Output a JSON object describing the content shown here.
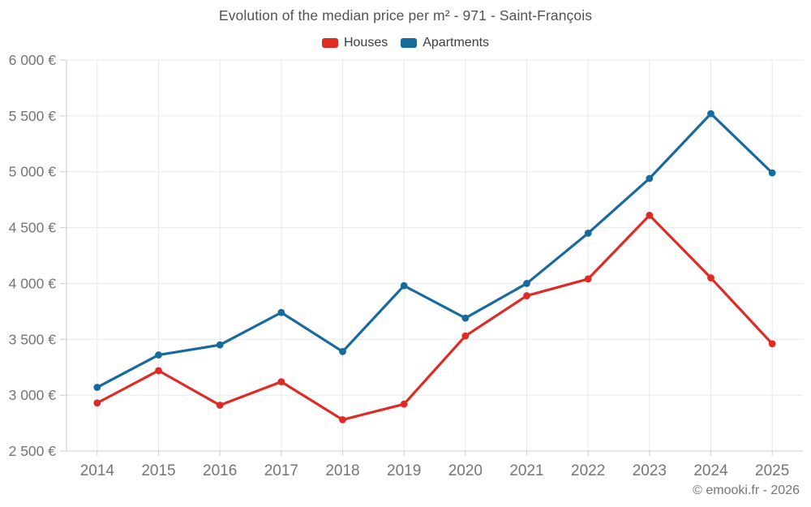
{
  "title": "Evolution of the median price per m² - 971 - Saint-François",
  "footer": "© emooki.fr - 2026",
  "style": {
    "background": "#ffffff",
    "grid_color": "#e8e8e8",
    "axis_color": "#cccccc",
    "tick_text_color": "#757575",
    "title_text_color": "#525252",
    "legend_text_color": "#3d3d3d",
    "footer_text_color": "#757575"
  },
  "chart_data": {
    "type": "line",
    "title": "Evolution of the median price per m² - 971 - Saint-François",
    "x": [
      "2014",
      "2015",
      "2016",
      "2017",
      "2018",
      "2019",
      "2020",
      "2021",
      "2022",
      "2023",
      "2024",
      "2025"
    ],
    "series": [
      {
        "name": "Houses",
        "color": "#df2b26",
        "values": [
          2930,
          3220,
          2910,
          3120,
          2780,
          2920,
          3530,
          3890,
          4040,
          4610,
          4050,
          3460
        ]
      },
      {
        "name": "Apartments",
        "color": "#176a9e",
        "values": [
          3070,
          3360,
          3450,
          3740,
          3390,
          3980,
          3690,
          4000,
          4450,
          4940,
          5520,
          4990
        ]
      }
    ],
    "y_ticks": [
      {
        "value": 2500,
        "label": "2 500 €"
      },
      {
        "value": 3000,
        "label": "3 000 €"
      },
      {
        "value": 3500,
        "label": "3 500 €"
      },
      {
        "value": 4000,
        "label": "4 000 €"
      },
      {
        "value": 4500,
        "label": "4 500 €"
      },
      {
        "value": 5000,
        "label": "5 000 €"
      },
      {
        "value": 5500,
        "label": "5 500 €"
      },
      {
        "value": 6000,
        "label": "6 000 €"
      }
    ],
    "ylim": [
      2500,
      6000
    ],
    "grid": true,
    "legend_position": "top",
    "currency_suffix": "€"
  }
}
